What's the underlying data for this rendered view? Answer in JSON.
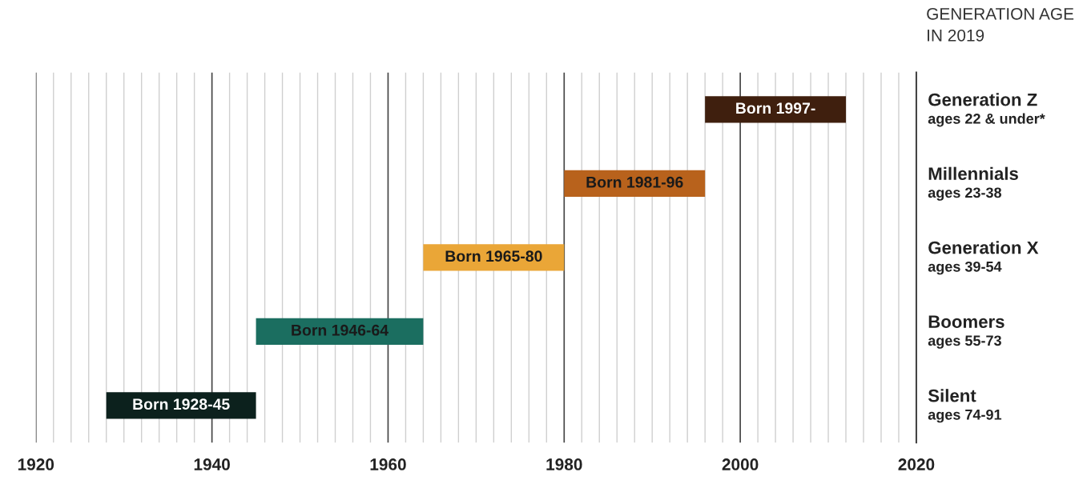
{
  "chart_data": {
    "type": "bar",
    "orientation": "horizontal",
    "ylabel": "GENERATION AGE\nIN 2019",
    "categories": [
      "Generation Z\nages 22 & under*",
      "Millennials\nages 23-38",
      "Generation X\nages 39-54",
      "Boomers\nages 55-73",
      "Silent\nages 74-91"
    ],
    "base": [
      1996,
      1980,
      1964,
      1945,
      1928
    ],
    "values": [
      16,
      16,
      16,
      19,
      17
    ],
    "colors": [
      "#3f1f0e",
      "#b8621c",
      "#eaa637",
      "#1b6e60",
      "#0c211d"
    ],
    "value_labels": [
      "Born 1997-",
      "Born 1981-96",
      "Born 1965-80",
      "Born 1946-64",
      "Born 1928-45"
    ],
    "xlim": [
      1920,
      2020
    ],
    "xticks": [
      1920,
      1940,
      1960,
      1980,
      2000,
      2020
    ],
    "grid": "x"
  }
}
